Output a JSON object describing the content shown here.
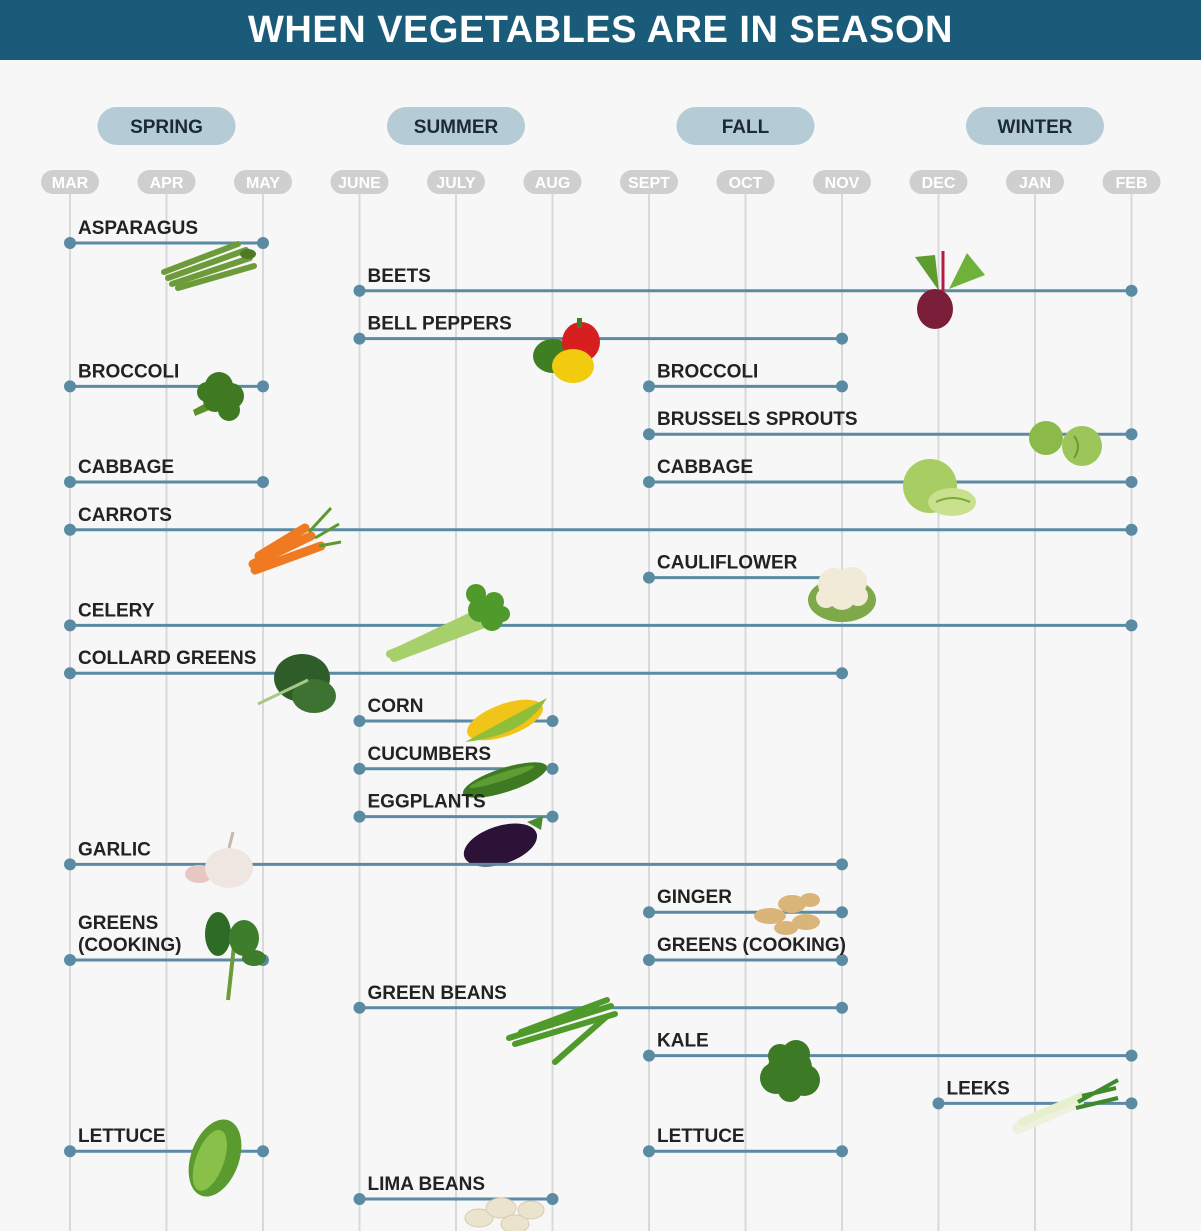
{
  "title": "WHEN VEGETABLES ARE IN SEASON",
  "colors": {
    "header_bg": "#1a5b7a",
    "season_pill": "#b5ccd6",
    "month_pill": "#cfcfcf",
    "range": "#5b8ba3",
    "grid": "#d9d9d9",
    "background": "#f7f7f7"
  },
  "chart_data": {
    "type": "timeline",
    "seasons": [
      {
        "label": "SPRING",
        "months": [
          "MAR",
          "APR",
          "MAY"
        ]
      },
      {
        "label": "SUMMER",
        "months": [
          "JUNE",
          "JULY",
          "AUG"
        ]
      },
      {
        "label": "FALL",
        "months": [
          "SEPT",
          "OCT",
          "NOV"
        ]
      },
      {
        "label": "WINTER",
        "months": [
          "DEC",
          "JAN",
          "FEB"
        ]
      }
    ],
    "months": [
      "MAR",
      "APR",
      "MAY",
      "JUNE",
      "JULY",
      "AUG",
      "SEPT",
      "OCT",
      "NOV",
      "DEC",
      "JAN",
      "FEB"
    ],
    "rows": [
      {
        "ranges": [
          {
            "label": "ASPARAGUS",
            "start": "MAR",
            "end": "MAY",
            "icon": "asparagus-icon"
          }
        ]
      },
      {
        "ranges": [
          {
            "label": "BEETS",
            "start": "JUNE",
            "end": "FEB",
            "icon": "beet-icon"
          }
        ]
      },
      {
        "ranges": [
          {
            "label": "BELL PEPPERS",
            "start": "JUNE",
            "end": "NOV",
            "icon": "bell-pepper-icon"
          }
        ]
      },
      {
        "ranges": [
          {
            "label": "BROCCOLI",
            "start": "MAR",
            "end": "MAY",
            "icon": "broccoli-icon"
          },
          {
            "label": "BROCCOLI",
            "start": "SEPT",
            "end": "NOV"
          }
        ]
      },
      {
        "ranges": [
          {
            "label": "BRUSSELS SPROUTS",
            "start": "SEPT",
            "end": "FEB",
            "icon": "brussels-sprouts-icon"
          }
        ]
      },
      {
        "ranges": [
          {
            "label": "CABBAGE",
            "start": "MAR",
            "end": "MAY"
          },
          {
            "label": "CABBAGE",
            "start": "SEPT",
            "end": "FEB",
            "icon": "cabbage-icon"
          }
        ]
      },
      {
        "ranges": [
          {
            "label": "CARROTS",
            "start": "MAR",
            "end": "FEB",
            "icon": "carrots-icon"
          }
        ]
      },
      {
        "ranges": [
          {
            "label": "CAULIFLOWER",
            "start": "SEPT",
            "end": "NOV",
            "icon": "cauliflower-icon"
          }
        ]
      },
      {
        "ranges": [
          {
            "label": "CELERY",
            "start": "MAR",
            "end": "FEB",
            "icon": "celery-icon"
          }
        ]
      },
      {
        "ranges": [
          {
            "label": "COLLARD GREENS",
            "start": "MAR",
            "end": "NOV",
            "icon": "collard-greens-icon"
          }
        ]
      },
      {
        "ranges": [
          {
            "label": "CORN",
            "start": "JUNE",
            "end": "AUG",
            "icon": "corn-icon"
          }
        ]
      },
      {
        "ranges": [
          {
            "label": "CUCUMBERS",
            "start": "JUNE",
            "end": "AUG",
            "icon": "cucumber-icon"
          }
        ]
      },
      {
        "ranges": [
          {
            "label": "EGGPLANTS",
            "start": "JUNE",
            "end": "AUG",
            "icon": "eggplant-icon"
          }
        ]
      },
      {
        "ranges": [
          {
            "label": "GARLIC",
            "start": "MAR",
            "end": "NOV",
            "icon": "garlic-icon"
          }
        ]
      },
      {
        "ranges": [
          {
            "label": "GINGER",
            "start": "SEPT",
            "end": "NOV",
            "icon": "ginger-icon"
          }
        ]
      },
      {
        "ranges": [
          {
            "label": "GREENS (COOKING)",
            "start": "MAR",
            "end": "MAY",
            "icon": "spinach-icon"
          },
          {
            "label": "GREENS (COOKING)",
            "start": "SEPT",
            "end": "NOV"
          }
        ]
      },
      {
        "ranges": [
          {
            "label": "GREEN BEANS",
            "start": "JUNE",
            "end": "NOV",
            "icon": "green-beans-icon"
          }
        ]
      },
      {
        "ranges": [
          {
            "label": "KALE",
            "start": "SEPT",
            "end": "FEB",
            "icon": "kale-icon"
          }
        ]
      },
      {
        "ranges": [
          {
            "label": "LEEKS",
            "start": "DEC",
            "end": "FEB",
            "icon": "leeks-icon"
          }
        ]
      },
      {
        "ranges": [
          {
            "label": "LETTUCE",
            "start": "MAR",
            "end": "MAY",
            "icon": "lettuce-icon"
          },
          {
            "label": "LETTUCE",
            "start": "SEPT",
            "end": "NOV"
          }
        ]
      },
      {
        "ranges": [
          {
            "label": "LIMA BEANS",
            "start": "JUNE",
            "end": "AUG",
            "icon": "lima-beans-icon"
          }
        ]
      }
    ]
  }
}
